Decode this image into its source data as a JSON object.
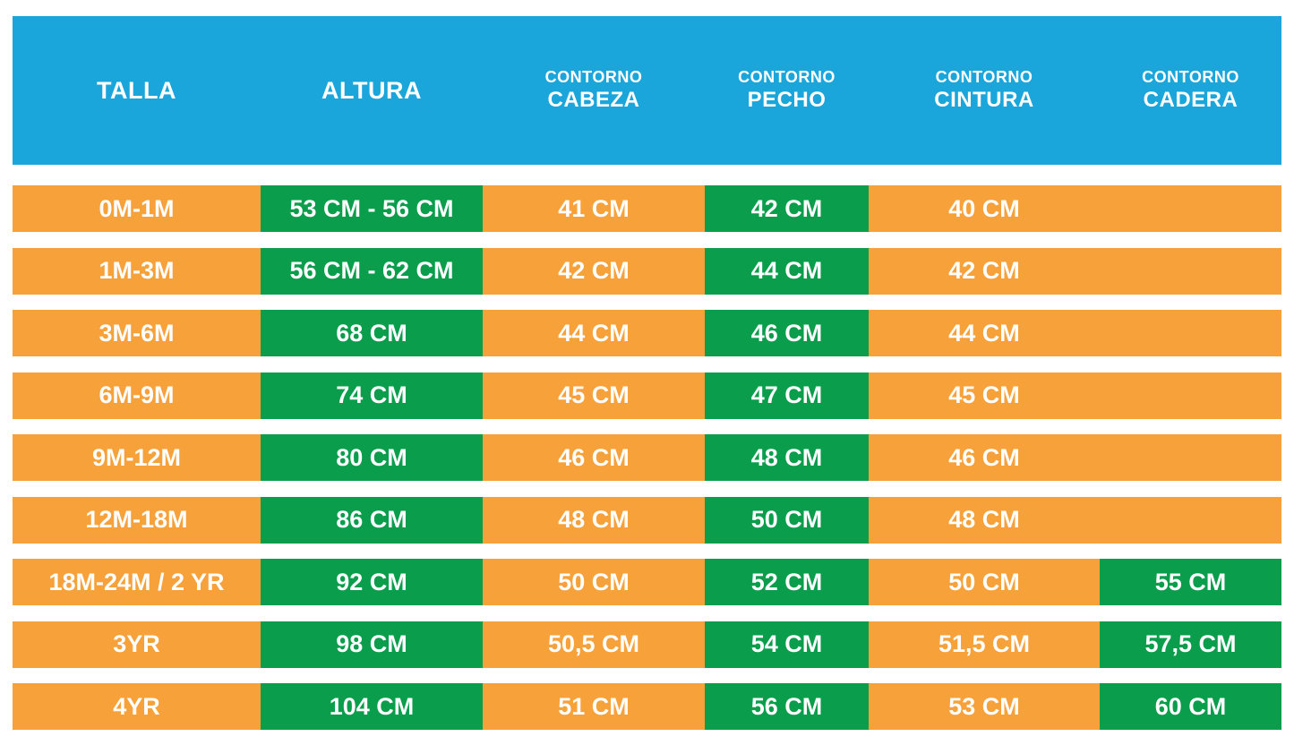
{
  "colors": {
    "header_bg": "#1AA5DB",
    "row_bg": "#F7A13B",
    "highlight_bg": "#0A9E4C",
    "text": "#FFFFFF"
  },
  "table": {
    "header": {
      "columns": [
        {
          "id": "talla",
          "label_top": "",
          "label": "TALLA"
        },
        {
          "id": "altura",
          "label_top": "",
          "label": "ALTURA"
        },
        {
          "id": "cabeza",
          "label_top": "CONTORNO",
          "label": "CABEZA"
        },
        {
          "id": "pecho",
          "label_top": "CONTORNO",
          "label": "PECHO"
        },
        {
          "id": "cintura",
          "label_top": "CONTORNO",
          "label": "CINTURA"
        },
        {
          "id": "cadera",
          "label_top": "CONTORNO",
          "label": "CADERA"
        }
      ]
    },
    "rows": [
      {
        "cells": [
          {
            "text": "0M-1M",
            "highlight": false
          },
          {
            "text": "53 CM - 56 CM",
            "highlight": true
          },
          {
            "text": "41 CM",
            "highlight": false
          },
          {
            "text": "42 CM",
            "highlight": true
          },
          {
            "text": "40 CM",
            "highlight": false
          },
          {
            "text": "",
            "highlight": false
          }
        ]
      },
      {
        "cells": [
          {
            "text": "1M-3M",
            "highlight": false
          },
          {
            "text": "56 CM - 62 CM",
            "highlight": true
          },
          {
            "text": "42 CM",
            "highlight": false
          },
          {
            "text": "44 CM",
            "highlight": true
          },
          {
            "text": "42 CM",
            "highlight": false
          },
          {
            "text": "",
            "highlight": false
          }
        ]
      },
      {
        "cells": [
          {
            "text": "3M-6M",
            "highlight": false
          },
          {
            "text": "68 CM",
            "highlight": true
          },
          {
            "text": "44 CM",
            "highlight": false
          },
          {
            "text": "46 CM",
            "highlight": true
          },
          {
            "text": "44 CM",
            "highlight": false
          },
          {
            "text": "",
            "highlight": false
          }
        ]
      },
      {
        "cells": [
          {
            "text": "6M-9M",
            "highlight": false
          },
          {
            "text": "74 CM",
            "highlight": true
          },
          {
            "text": "45 CM",
            "highlight": false
          },
          {
            "text": "47 CM",
            "highlight": true
          },
          {
            "text": "45 CM",
            "highlight": false
          },
          {
            "text": "",
            "highlight": false
          }
        ]
      },
      {
        "cells": [
          {
            "text": "9M-12M",
            "highlight": false
          },
          {
            "text": "80 CM",
            "highlight": true
          },
          {
            "text": "46 CM",
            "highlight": false
          },
          {
            "text": "48 CM",
            "highlight": true
          },
          {
            "text": "46 CM",
            "highlight": false
          },
          {
            "text": "",
            "highlight": false
          }
        ]
      },
      {
        "cells": [
          {
            "text": "12M-18M",
            "highlight": false
          },
          {
            "text": "86 CM",
            "highlight": true
          },
          {
            "text": "48 CM",
            "highlight": false
          },
          {
            "text": "50 CM",
            "highlight": true
          },
          {
            "text": "48 CM",
            "highlight": false
          },
          {
            "text": "",
            "highlight": false
          }
        ]
      },
      {
        "cells": [
          {
            "text": "18M-24M / 2 YR",
            "highlight": false
          },
          {
            "text": "92 CM",
            "highlight": true
          },
          {
            "text": "50 CM",
            "highlight": false
          },
          {
            "text": "52 CM",
            "highlight": true
          },
          {
            "text": "50 CM",
            "highlight": false
          },
          {
            "text": "55 CM",
            "highlight": true
          }
        ]
      },
      {
        "cells": [
          {
            "text": "3YR",
            "highlight": false
          },
          {
            "text": "98 CM",
            "highlight": true
          },
          {
            "text": "50,5 CM",
            "highlight": false
          },
          {
            "text": "54 CM",
            "highlight": true
          },
          {
            "text": "51,5 CM",
            "highlight": false
          },
          {
            "text": "57,5 CM",
            "highlight": true
          }
        ]
      },
      {
        "cells": [
          {
            "text": "4YR",
            "highlight": false
          },
          {
            "text": "104 CM",
            "highlight": true
          },
          {
            "text": "51 CM",
            "highlight": false
          },
          {
            "text": "56 CM",
            "highlight": true
          },
          {
            "text": "53 CM",
            "highlight": false
          },
          {
            "text": "60 CM",
            "highlight": true
          }
        ]
      }
    ]
  },
  "chart_data": {
    "type": "table",
    "title": "",
    "columns": [
      "TALLA",
      "ALTURA",
      "CONTORNO CABEZA",
      "CONTORNO PECHO",
      "CONTORNO CINTURA",
      "CONTORNO CADERA"
    ],
    "rows": [
      [
        "0M-1M",
        "53 CM - 56 CM",
        "41 CM",
        "42 CM",
        "40 CM",
        ""
      ],
      [
        "1M-3M",
        "56 CM - 62 CM",
        "42 CM",
        "44 CM",
        "42 CM",
        ""
      ],
      [
        "3M-6M",
        "68 CM",
        "44 CM",
        "46 CM",
        "44 CM",
        ""
      ],
      [
        "6M-9M",
        "74 CM",
        "45 CM",
        "47 CM",
        "45 CM",
        ""
      ],
      [
        "9M-12M",
        "80 CM",
        "46 CM",
        "48 CM",
        "46 CM",
        ""
      ],
      [
        "12M-18M",
        "86 CM",
        "48 CM",
        "50 CM",
        "48 CM",
        ""
      ],
      [
        "18M-24M / 2 YR",
        "92 CM",
        "50 CM",
        "52 CM",
        "50 CM",
        "55 CM"
      ],
      [
        "3YR",
        "98 CM",
        "50,5 CM",
        "54 CM",
        "51,5 CM",
        "57,5 CM"
      ],
      [
        "4YR",
        "104 CM",
        "51 CM",
        "56 CM",
        "53 CM",
        "60 CM"
      ]
    ],
    "layout_hints": {
      "header_color": "#1AA5DB",
      "row_color": "#F7A13B",
      "highlight_color": "#0A9E4C",
      "highlighted_columns_all_rows": [
        "ALTURA",
        "CONTORNO PECHO"
      ],
      "highlighted_columns_rows_7_to_9": [
        "CONTORNO CADERA"
      ]
    }
  }
}
